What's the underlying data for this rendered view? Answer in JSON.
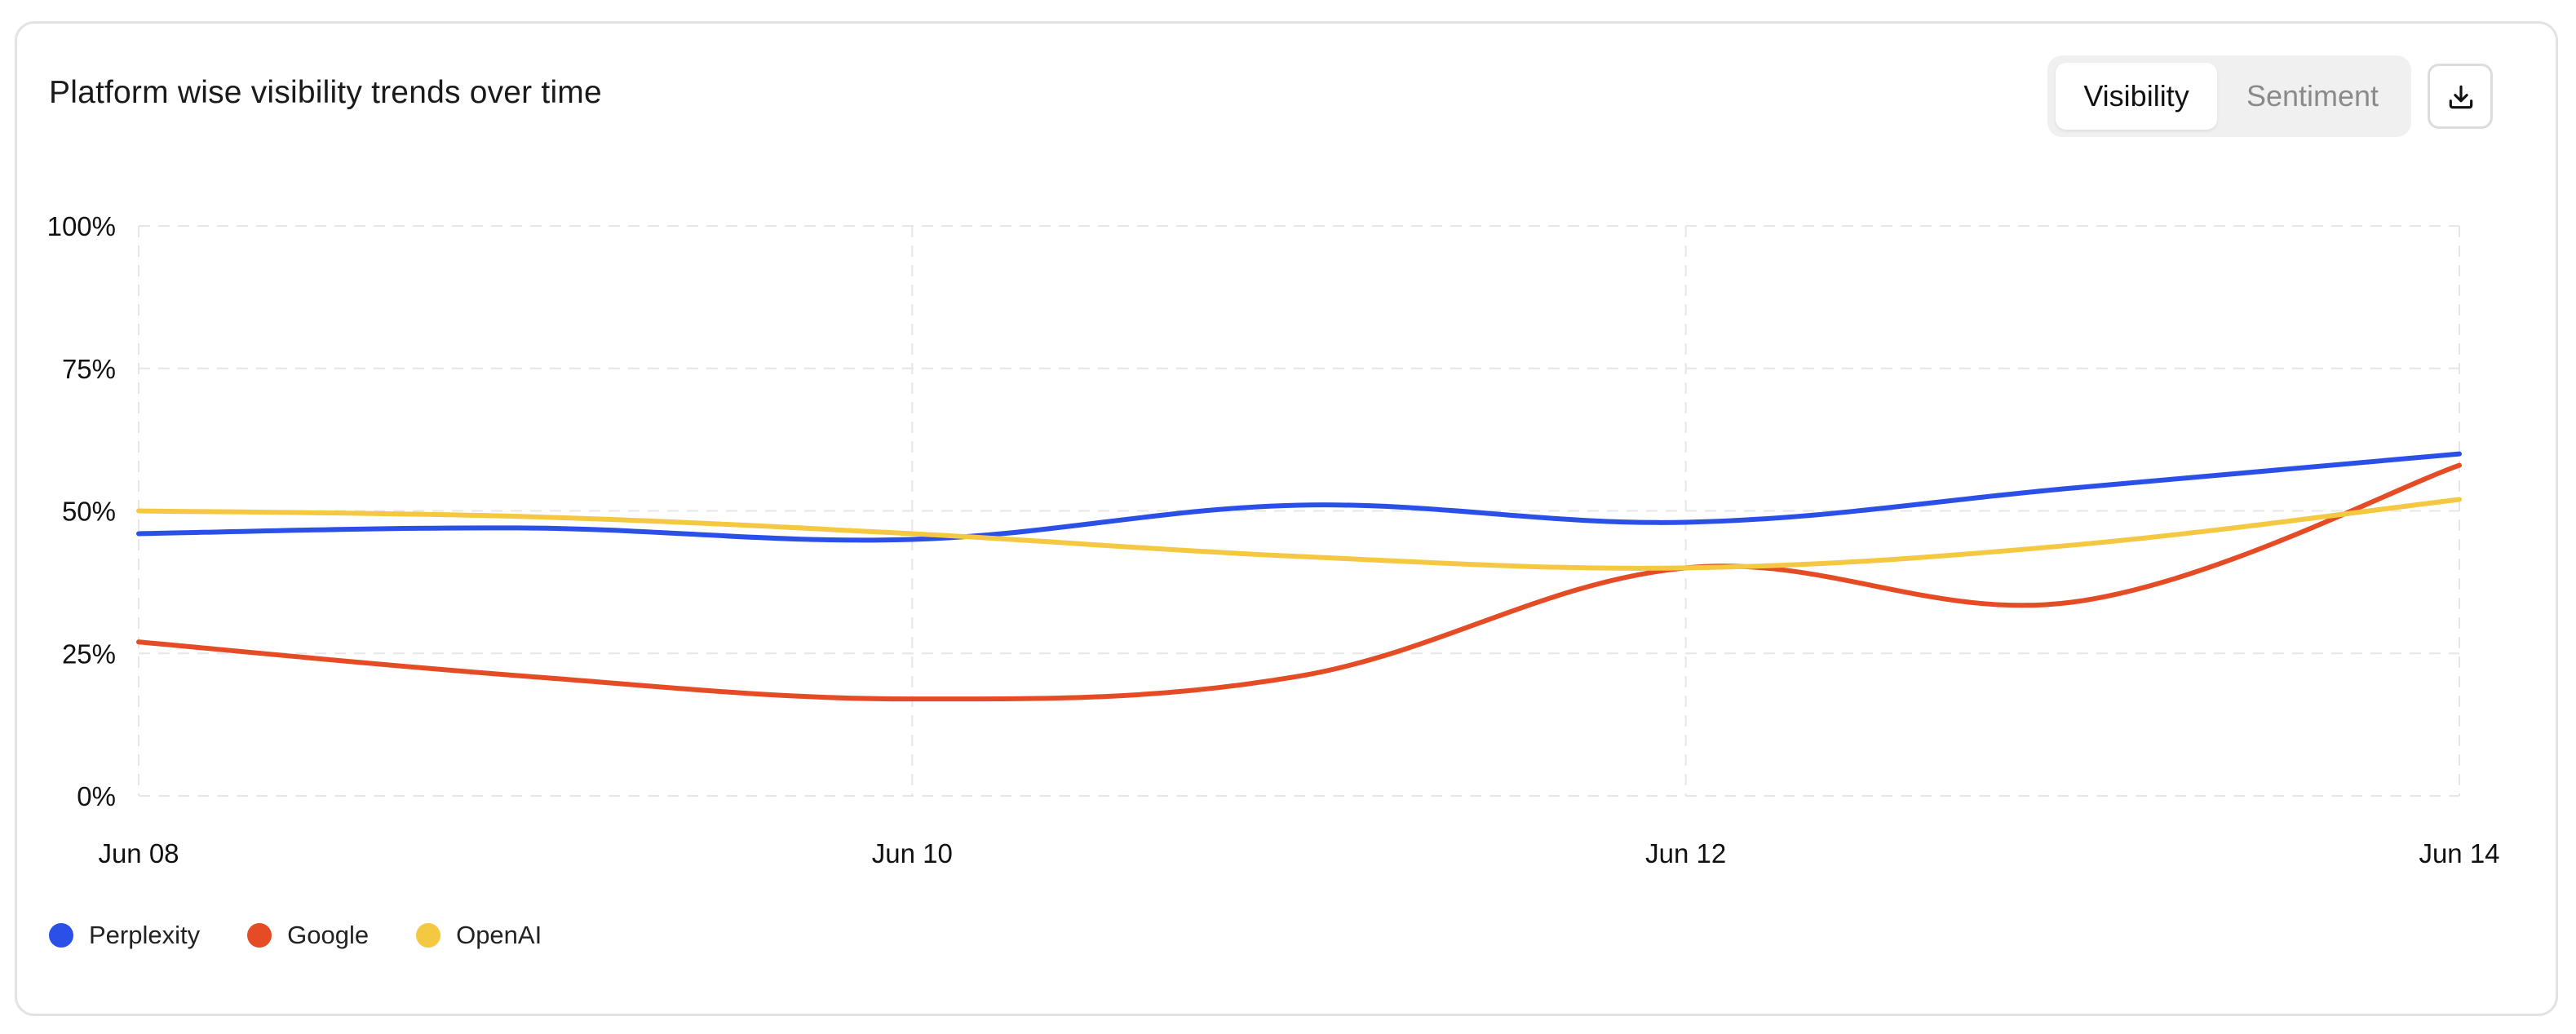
{
  "header": {
    "title": "Platform wise visibility trends over time",
    "toggle": {
      "active_label": "Visibility",
      "inactive_label": "Sentiment"
    },
    "download_icon": "download-icon"
  },
  "colors": {
    "perplexity": "#2b50e8",
    "google": "#e54b25",
    "openai": "#f5c842",
    "grid": "#e6e6e6"
  },
  "chart_data": {
    "type": "line",
    "x": [
      "Jun 08",
      "Jun 09",
      "Jun 10",
      "Jun 11",
      "Jun 12",
      "Jun 13",
      "Jun 14"
    ],
    "xticks": [
      "Jun 08",
      "Jun 10",
      "Jun 12",
      "Jun 14"
    ],
    "yticks": [
      "0%",
      "25%",
      "50%",
      "75%",
      "100%"
    ],
    "ylim": [
      0,
      100
    ],
    "grid": true,
    "legend_position": "bottom-left",
    "series": [
      {
        "name": "Perplexity",
        "values": [
          46,
          47,
          45,
          51,
          48,
          54,
          60
        ]
      },
      {
        "name": "Google",
        "values": [
          27,
          21,
          17,
          21,
          40,
          34,
          58
        ]
      },
      {
        "name": "OpenAI",
        "values": [
          50,
          49,
          46,
          42,
          40,
          44,
          52
        ]
      }
    ]
  }
}
